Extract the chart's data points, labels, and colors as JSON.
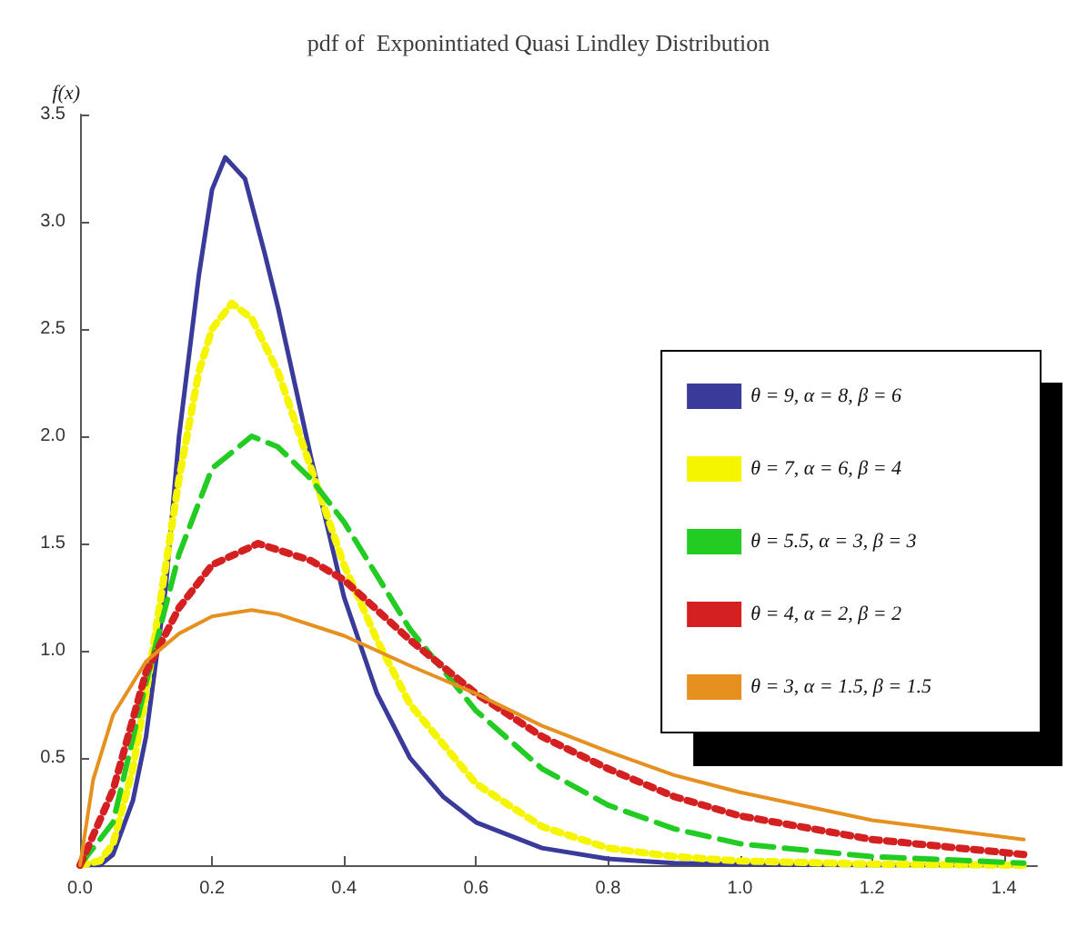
{
  "chart_data": {
    "type": "line",
    "title": "pdf of  Exponintiated Quasi Lindley Distribution",
    "ylabel": "f(x)",
    "xlim": [
      0,
      1.45
    ],
    "ylim": [
      0,
      3.5
    ],
    "xticks": [
      {
        "value": 0,
        "label": "0.0"
      },
      {
        "value": 0.2,
        "label": "0.2"
      },
      {
        "value": 0.4,
        "label": "0.4"
      },
      {
        "value": 0.6,
        "label": "0.6"
      },
      {
        "value": 0.8,
        "label": "0.8"
      },
      {
        "value": 1,
        "label": "1.0"
      },
      {
        "value": 1.2,
        "label": "1.2"
      },
      {
        "value": 1.4,
        "label": "1.4"
      }
    ],
    "yticks": [
      0.5,
      {
        "value": 1,
        "label": "1.0"
      },
      1.5,
      {
        "value": 2,
        "label": "2.0"
      },
      2.5,
      {
        "value": 3,
        "label": "3.0"
      },
      3.5
    ],
    "grid": false,
    "legend": "right",
    "marker": "none",
    "series": [
      {
        "name": "θ = 9, α = 8, β = 6",
        "color": "#3a3a9a",
        "line_style": "solid",
        "x": [
          0,
          0.03,
          0.05,
          0.08,
          0.1,
          0.13,
          0.15,
          0.18,
          0.2,
          0.22,
          0.25,
          0.28,
          0.3,
          0.35,
          0.4,
          0.45,
          0.5,
          0.55,
          0.6,
          0.7,
          0.8,
          0.9,
          1.0,
          1.2,
          1.43
        ],
        "values": [
          0,
          0,
          0.05,
          0.3,
          0.6,
          1.3,
          2.0,
          2.75,
          3.15,
          3.3,
          3.2,
          2.85,
          2.6,
          1.9,
          1.25,
          0.8,
          0.5,
          0.32,
          0.2,
          0.08,
          0.03,
          0.01,
          0.005,
          0,
          0
        ]
      },
      {
        "name": "θ = 7, α = 6, β = 4",
        "color": "#f5f500",
        "line_style": "dotted",
        "x": [
          0,
          0.03,
          0.05,
          0.08,
          0.1,
          0.13,
          0.15,
          0.18,
          0.2,
          0.23,
          0.26,
          0.3,
          0.35,
          0.4,
          0.45,
          0.5,
          0.6,
          0.7,
          0.8,
          0.9,
          1.0,
          1.2,
          1.43
        ],
        "values": [
          0,
          0.02,
          0.1,
          0.45,
          0.8,
          1.4,
          1.8,
          2.3,
          2.5,
          2.62,
          2.55,
          2.3,
          1.85,
          1.4,
          1.05,
          0.75,
          0.38,
          0.18,
          0.08,
          0.04,
          0.02,
          0.005,
          0
        ]
      },
      {
        "name": "θ = 5.5, α = 3, β = 3",
        "color": "#22cc22",
        "line_style": "dashed",
        "x": [
          0,
          0.05,
          0.1,
          0.15,
          0.2,
          0.26,
          0.3,
          0.35,
          0.4,
          0.45,
          0.5,
          0.6,
          0.7,
          0.8,
          0.9,
          1.0,
          1.2,
          1.43
        ],
        "values": [
          0,
          0.2,
          0.85,
          1.45,
          1.85,
          2.0,
          1.95,
          1.8,
          1.6,
          1.35,
          1.1,
          0.72,
          0.45,
          0.28,
          0.17,
          0.1,
          0.04,
          0.01
        ]
      },
      {
        "name": "θ = 4, α = 2, β = 2",
        "color": "#d42020",
        "line_style": "dotted",
        "x": [
          0,
          0.05,
          0.1,
          0.15,
          0.2,
          0.27,
          0.35,
          0.4,
          0.5,
          0.6,
          0.7,
          0.8,
          0.9,
          1.0,
          1.2,
          1.43
        ],
        "values": [
          0,
          0.35,
          0.9,
          1.2,
          1.4,
          1.5,
          1.42,
          1.33,
          1.05,
          0.8,
          0.6,
          0.45,
          0.32,
          0.23,
          0.12,
          0.05
        ]
      },
      {
        "name": "θ = 3, α = 1.5, β = 1.5",
        "color": "#e69020",
        "line_style": "solid",
        "x": [
          0,
          0.02,
          0.05,
          0.1,
          0.15,
          0.2,
          0.26,
          0.3,
          0.4,
          0.5,
          0.6,
          0.7,
          0.8,
          0.9,
          1.0,
          1.2,
          1.43
        ],
        "values": [
          0,
          0.4,
          0.7,
          0.95,
          1.08,
          1.16,
          1.19,
          1.17,
          1.07,
          0.93,
          0.8,
          0.65,
          0.53,
          0.42,
          0.34,
          0.21,
          0.12
        ]
      }
    ]
  }
}
